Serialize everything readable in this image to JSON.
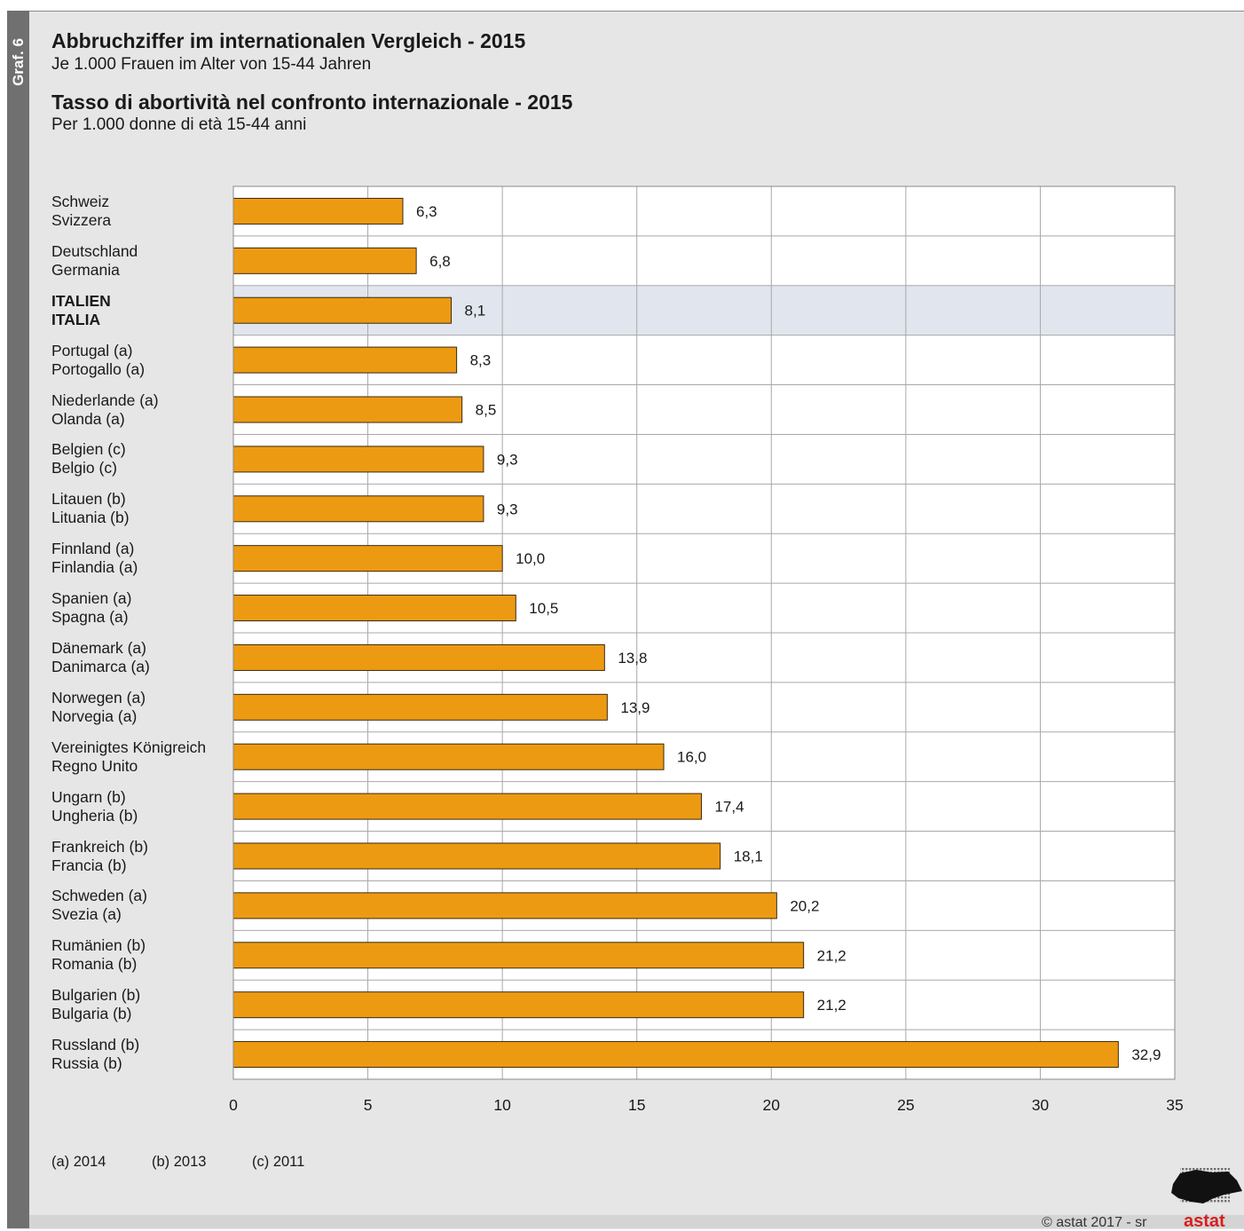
{
  "graf_label": "Graf. 6",
  "title_de": "Abbruchziffer im internationalen Vergleich - 2015",
  "subtitle_de": "Je 1.000 Frauen im Alter von 15-44 Jahren",
  "title_it": "Tasso di abortività nel confronto internazionale - 2015",
  "subtitle_it": "Per 1.000 donne di età 15-44 anni",
  "footnotes": [
    "(a) 2014",
    "(b) 2013",
    "(c) 2011"
  ],
  "copyright": "© astat 2017 - sr",
  "logo_text": "astat",
  "colors": {
    "bar": "#ed9a13",
    "bar_stroke": "#3a2a10",
    "highlight_row": "#e1e6ee",
    "grid": "#a8a8a8",
    "logo_red": "#d81e1e"
  },
  "chart_data": {
    "type": "bar",
    "orientation": "horizontal",
    "categories": [
      {
        "de": "Schweiz",
        "it": "Svizzera",
        "highlight": false
      },
      {
        "de": "Deutschland",
        "it": "Germania",
        "highlight": false
      },
      {
        "de": "ITALIEN",
        "it": "ITALIA",
        "highlight": true
      },
      {
        "de": "Portugal (a)",
        "it": "Portogallo (a)",
        "highlight": false
      },
      {
        "de": "Niederlande (a)",
        "it": "Olanda (a)",
        "highlight": false
      },
      {
        "de": "Belgien (c)",
        "it": "Belgio (c)",
        "highlight": false
      },
      {
        "de": "Litauen (b)",
        "it": "Lituania (b)",
        "highlight": false
      },
      {
        "de": "Finnland (a)",
        "it": "Finlandia (a)",
        "highlight": false
      },
      {
        "de": "Spanien (a)",
        "it": "Spagna (a)",
        "highlight": false
      },
      {
        "de": "Dänemark (a)",
        "it": "Danimarca (a)",
        "highlight": false
      },
      {
        "de": "Norwegen (a)",
        "it": "Norvegia (a)",
        "highlight": false
      },
      {
        "de": "Vereinigtes Königreich",
        "it": "Regno Unito",
        "highlight": false
      },
      {
        "de": "Ungarn (b)",
        "it": "Ungheria (b)",
        "highlight": false
      },
      {
        "de": "Frankreich (b)",
        "it": "Francia (b)",
        "highlight": false
      },
      {
        "de": "Schweden (a)",
        "it": "Svezia (a)",
        "highlight": false
      },
      {
        "de": "Rumänien (b)",
        "it": "Romania (b)",
        "highlight": false
      },
      {
        "de": "Bulgarien (b)",
        "it": "Bulgaria (b)",
        "highlight": false
      },
      {
        "de": "Russland (b)",
        "it": "Russia (b)",
        "highlight": false
      }
    ],
    "values": [
      6.3,
      6.8,
      8.1,
      8.3,
      8.5,
      9.3,
      9.3,
      10.0,
      10.5,
      13.8,
      13.9,
      16.0,
      17.4,
      18.1,
      20.2,
      21.2,
      21.2,
      32.9
    ],
    "value_labels": [
      "6,3",
      "6,8",
      "8,1",
      "8,3",
      "8,5",
      "9,3",
      "9,3",
      "10,0",
      "10,5",
      "13,8",
      "13,9",
      "16,0",
      "17,4",
      "18,1",
      "20,2",
      "21,2",
      "21,2",
      "32,9"
    ],
    "xlim": [
      0,
      35
    ],
    "xticks": [
      0,
      5,
      10,
      15,
      20,
      25,
      30,
      35
    ],
    "grid": true
  }
}
